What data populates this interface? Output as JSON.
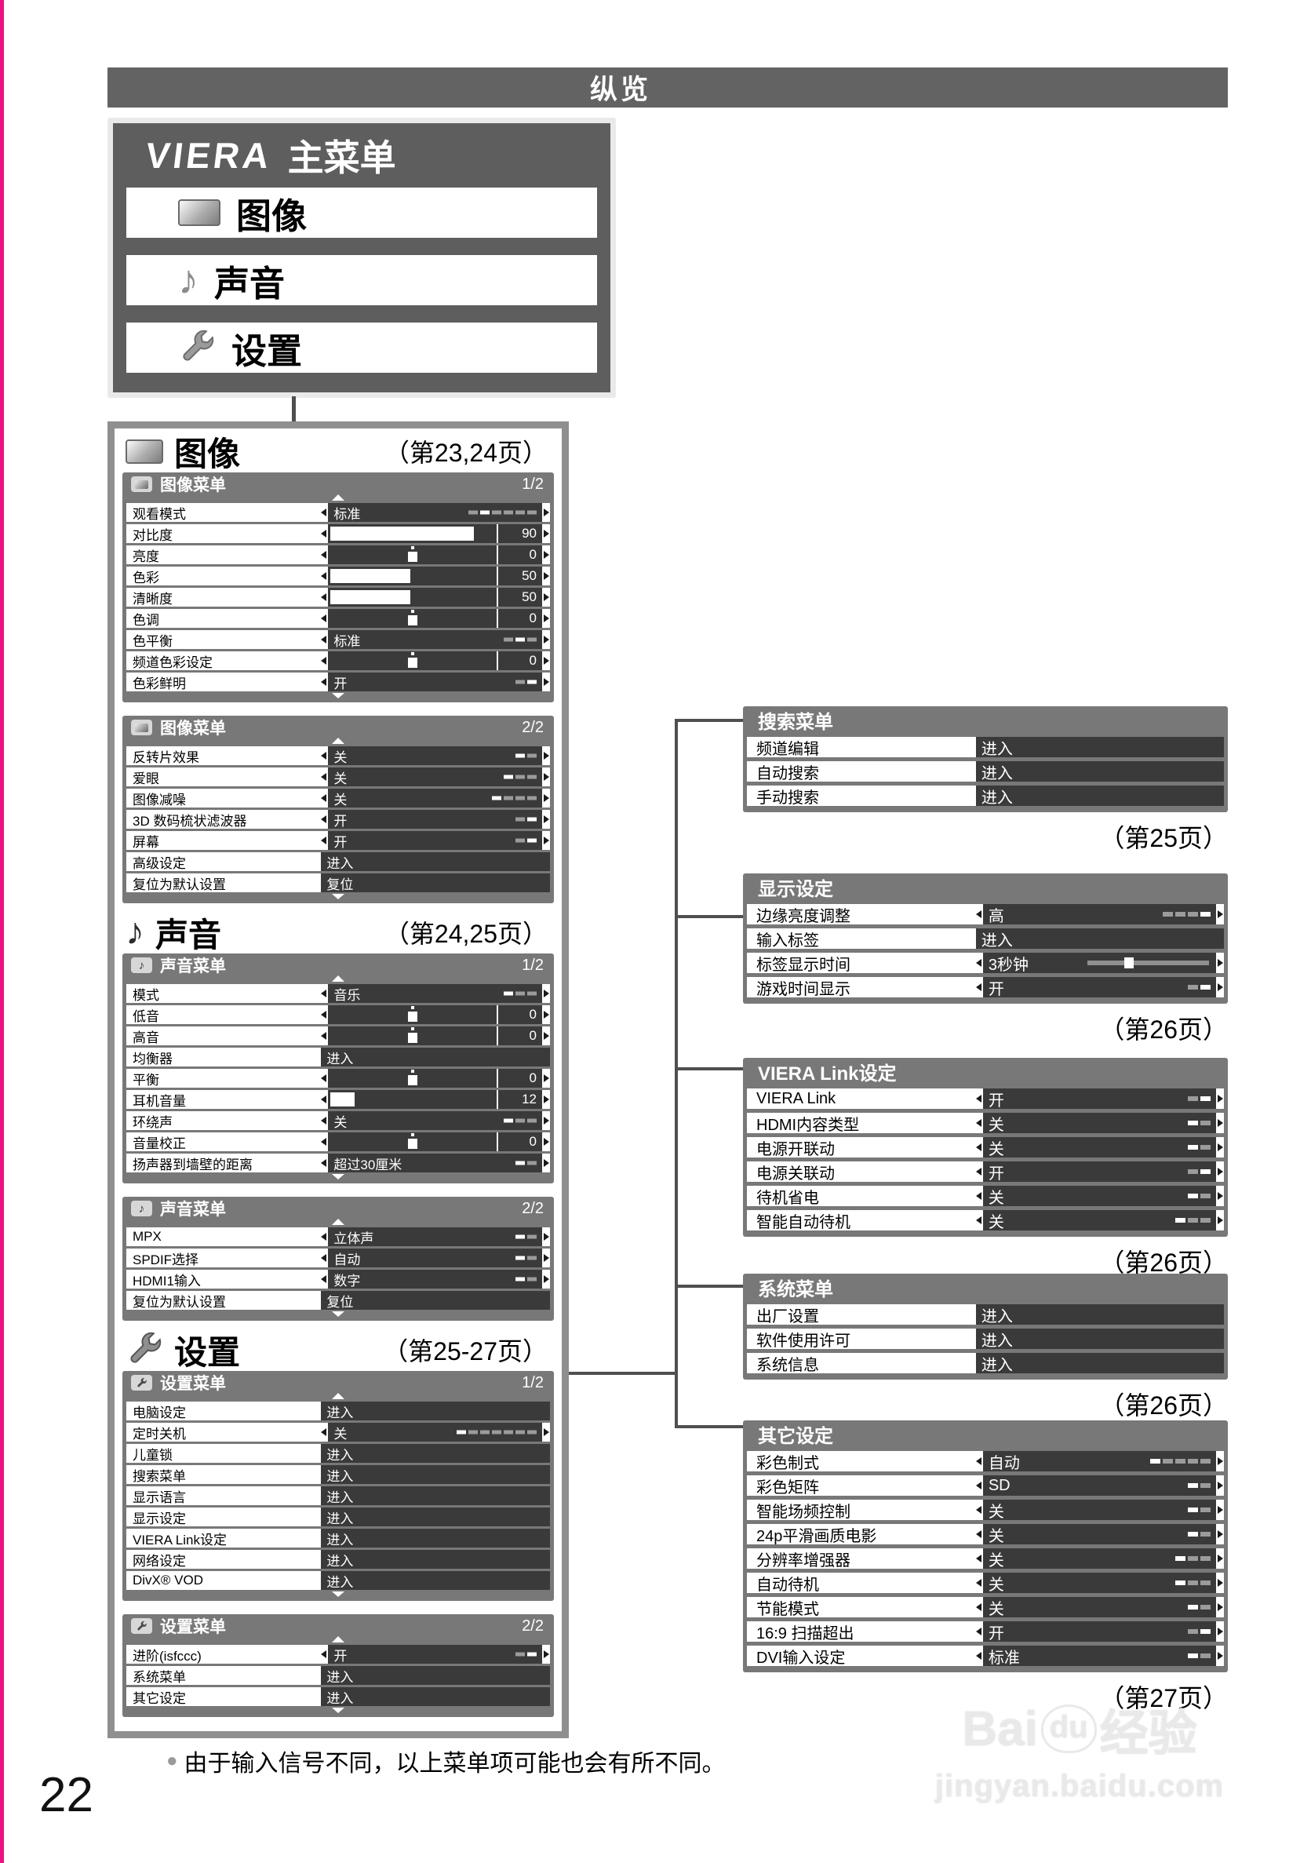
{
  "page": {
    "title_bar": "纵览",
    "page_number": "22",
    "footer_bullet": "●",
    "footer_note": "由于输入信号不同，以上菜单项可能也会有所不同。",
    "watermark": {
      "brand": "Bai",
      "paw": "du",
      "brand_cn": "经验",
      "url": "jingyan.baidu.com"
    },
    "colors": {
      "accent_strip": "#ec1380",
      "bar_gray": "#636363",
      "panel_gray": "#787878",
      "value_dark": "#3a3a3a",
      "container_border": "#8f8f8f"
    }
  },
  "main_menu": {
    "logo": "VIERA",
    "title": "主菜单",
    "items": [
      {
        "label": "图像",
        "icon": "screen-icon"
      },
      {
        "label": "声音",
        "icon": "music-note-icon"
      },
      {
        "label": "设置",
        "icon": "wrench-icon"
      }
    ]
  },
  "left_sections": [
    {
      "icon": "screen-icon",
      "title": "图像",
      "page_ref": "（第23,24页）",
      "panels": [
        {
          "icon": "screen-icon",
          "title": "图像菜单",
          "page": "1/2",
          "rows": [
            {
              "label": "观看模式",
              "type": "text",
              "value": "标准",
              "segs": 6,
              "active": 1
            },
            {
              "label": "对比度",
              "type": "bar",
              "value": "90",
              "fill": 0.88
            },
            {
              "label": "亮度",
              "type": "center",
              "value": "0"
            },
            {
              "label": "色彩",
              "type": "bar",
              "value": "50",
              "fill": 0.5
            },
            {
              "label": "清晰度",
              "type": "bar",
              "value": "50",
              "fill": 0.5
            },
            {
              "label": "色调",
              "type": "center",
              "value": "0"
            },
            {
              "label": "色平衡",
              "type": "text",
              "value": "标准",
              "segs": 3,
              "active": 1
            },
            {
              "label": "频道色彩设定",
              "type": "center",
              "value": "0"
            },
            {
              "label": "色彩鲜明",
              "type": "text",
              "value": "开",
              "segs": 2,
              "active": 1
            }
          ]
        },
        {
          "icon": "screen-icon",
          "title": "图像菜单",
          "page": "2/2",
          "rows": [
            {
              "label": "反转片效果",
              "type": "text",
              "value": "关",
              "segs": 2,
              "active": 0
            },
            {
              "label": "爱眼",
              "type": "text",
              "value": "关",
              "segs": 3,
              "active": 0
            },
            {
              "label": "图像减噪",
              "type": "text",
              "value": "关",
              "segs": 4,
              "active": 0
            },
            {
              "label": "3D 数码梳状滤波器",
              "type": "text",
              "value": "开",
              "segs": 2,
              "active": 1
            },
            {
              "label": "屏幕",
              "type": "text",
              "value": "开",
              "segs": 2,
              "active": 1
            },
            {
              "label": "高级设定",
              "type": "enter",
              "value": "进入"
            },
            {
              "label": "复位为默认设置",
              "type": "enter",
              "value": "复位"
            }
          ]
        }
      ]
    },
    {
      "icon": "music-note-icon",
      "title": "声音",
      "page_ref": "（第24,25页）",
      "panels": [
        {
          "icon": "music-note-icon",
          "title": "声音菜单",
          "page": "1/2",
          "rows": [
            {
              "label": "模式",
              "type": "text",
              "value": "音乐",
              "segs": 3,
              "active": 0
            },
            {
              "label": "低音",
              "type": "center",
              "value": "0"
            },
            {
              "label": "高音",
              "type": "center",
              "value": "0"
            },
            {
              "label": "均衡器",
              "type": "enter",
              "value": "进入"
            },
            {
              "label": "平衡",
              "type": "center",
              "value": "0"
            },
            {
              "label": "耳机音量",
              "type": "bar",
              "value": "12",
              "fill": 0.17
            },
            {
              "label": "环绕声",
              "type": "text",
              "value": "关",
              "segs": 3,
              "active": 0
            },
            {
              "label": "音量校正",
              "type": "center",
              "value": "0"
            },
            {
              "label": "扬声器到墙壁的距离",
              "type": "text",
              "value": "超过30厘米",
              "segs": 2,
              "active": 0
            }
          ]
        },
        {
          "icon": "music-note-icon",
          "title": "声音菜单",
          "page": "2/2",
          "rows": [
            {
              "label": "MPX",
              "type": "text",
              "value": "立体声",
              "segs": 2,
              "active": 0
            },
            {
              "label": "SPDIF选择",
              "type": "text",
              "value": "自动",
              "segs": 2,
              "active": 0
            },
            {
              "label": "HDMI1输入",
              "type": "text",
              "value": "数字",
              "segs": 2,
              "active": 0
            },
            {
              "label": "复位为默认设置",
              "type": "enter",
              "value": "复位"
            }
          ]
        }
      ]
    },
    {
      "icon": "wrench-icon",
      "title": "设置",
      "page_ref": "（第25-27页）",
      "panels": [
        {
          "icon": "wrench-icon",
          "title": "设置菜单",
          "page": "1/2",
          "rows": [
            {
              "label": "电脑设定",
              "type": "enter",
              "value": "进入"
            },
            {
              "label": "定时关机",
              "type": "text",
              "value": "关",
              "segs": 7,
              "active": 0
            },
            {
              "label": "儿童锁",
              "type": "enter",
              "value": "进入"
            },
            {
              "label": "搜索菜单",
              "type": "enter",
              "value": "进入"
            },
            {
              "label": "显示语言",
              "type": "enter",
              "value": "进入"
            },
            {
              "label": "显示设定",
              "type": "enter",
              "value": "进入"
            },
            {
              "label": "VIERA Link设定",
              "type": "enter",
              "value": "进入"
            },
            {
              "label": "网络设定",
              "type": "enter",
              "value": "进入"
            },
            {
              "label": "DivX® VOD",
              "type": "enter",
              "value": "进入"
            }
          ]
        },
        {
          "icon": "wrench-icon",
          "title": "设置菜单",
          "page": "2/2",
          "rows": [
            {
              "label": "进阶(isfccc)",
              "type": "text",
              "value": "开",
              "segs": 2,
              "active": 1
            },
            {
              "label": "系统菜单",
              "type": "enter",
              "value": "进入"
            },
            {
              "label": "其它设定",
              "type": "enter",
              "value": "进入"
            }
          ]
        }
      ]
    }
  ],
  "right_panels": [
    {
      "title": "搜索菜单",
      "page_ref": "（第25页）",
      "rows": [
        {
          "label": "频道编辑",
          "type": "enter",
          "value": "进入"
        },
        {
          "label": "自动搜索",
          "type": "enter",
          "value": "进入"
        },
        {
          "label": "手动搜索",
          "type": "enter",
          "value": "进入"
        }
      ]
    },
    {
      "title": "显示设定",
      "page_ref": "（第26页）",
      "rows": [
        {
          "label": "边缘亮度调整",
          "type": "text",
          "value": "高",
          "segs": 4,
          "active": 3
        },
        {
          "label": "输入标签",
          "type": "enter",
          "value": "进入"
        },
        {
          "label": "标签显示时间",
          "type": "range",
          "value": "3秒钟",
          "pos": 0.3
        },
        {
          "label": "游戏时间显示",
          "type": "text",
          "value": "开",
          "segs": 2,
          "active": 1
        }
      ]
    },
    {
      "title": "VIERA Link设定",
      "page_ref": "（第26页）",
      "rows": [
        {
          "label": "VIERA Link",
          "type": "text",
          "value": "开",
          "segs": 2,
          "active": 1
        },
        {
          "label": "HDMI内容类型",
          "type": "text",
          "value": "关",
          "segs": 2,
          "active": 0
        },
        {
          "label": "电源开联动",
          "type": "text",
          "value": "关",
          "segs": 2,
          "active": 0
        },
        {
          "label": "电源关联动",
          "type": "text",
          "value": "开",
          "segs": 2,
          "active": 1
        },
        {
          "label": "待机省电",
          "type": "text",
          "value": "关",
          "segs": 2,
          "active": 0
        },
        {
          "label": "智能自动待机",
          "type": "text",
          "value": "关",
          "segs": 3,
          "active": 0
        }
      ]
    },
    {
      "title": "系统菜单",
      "page_ref": "（第26页）",
      "rows": [
        {
          "label": "出厂设置",
          "type": "enter",
          "value": "进入"
        },
        {
          "label": "软件使用许可",
          "type": "enter",
          "value": "进入"
        },
        {
          "label": "系统信息",
          "type": "enter",
          "value": "进入"
        }
      ]
    },
    {
      "title": "其它设定",
      "page_ref": "（第27页）",
      "rows": [
        {
          "label": "彩色制式",
          "type": "text",
          "value": "自动",
          "segs": 5,
          "active": 0
        },
        {
          "label": "彩色矩阵",
          "type": "text",
          "value": "SD",
          "segs": 2,
          "active": 0
        },
        {
          "label": "智能场频控制",
          "type": "text",
          "value": "关",
          "segs": 2,
          "active": 0
        },
        {
          "label": "24p平滑画质电影",
          "type": "text",
          "value": "关",
          "segs": 2,
          "active": 0
        },
        {
          "label": "分辨率增强器",
          "type": "text",
          "value": "关",
          "segs": 3,
          "active": 0
        },
        {
          "label": "自动待机",
          "type": "text",
          "value": "关",
          "segs": 3,
          "active": 0
        },
        {
          "label": "节能模式",
          "type": "text",
          "value": "关",
          "segs": 2,
          "active": 0
        },
        {
          "label": "16:9 扫描超出",
          "type": "text",
          "value": "开",
          "segs": 2,
          "active": 1
        },
        {
          "label": "DVI输入设定",
          "type": "text",
          "value": "标准",
          "segs": 2,
          "active": 0
        }
      ]
    }
  ]
}
